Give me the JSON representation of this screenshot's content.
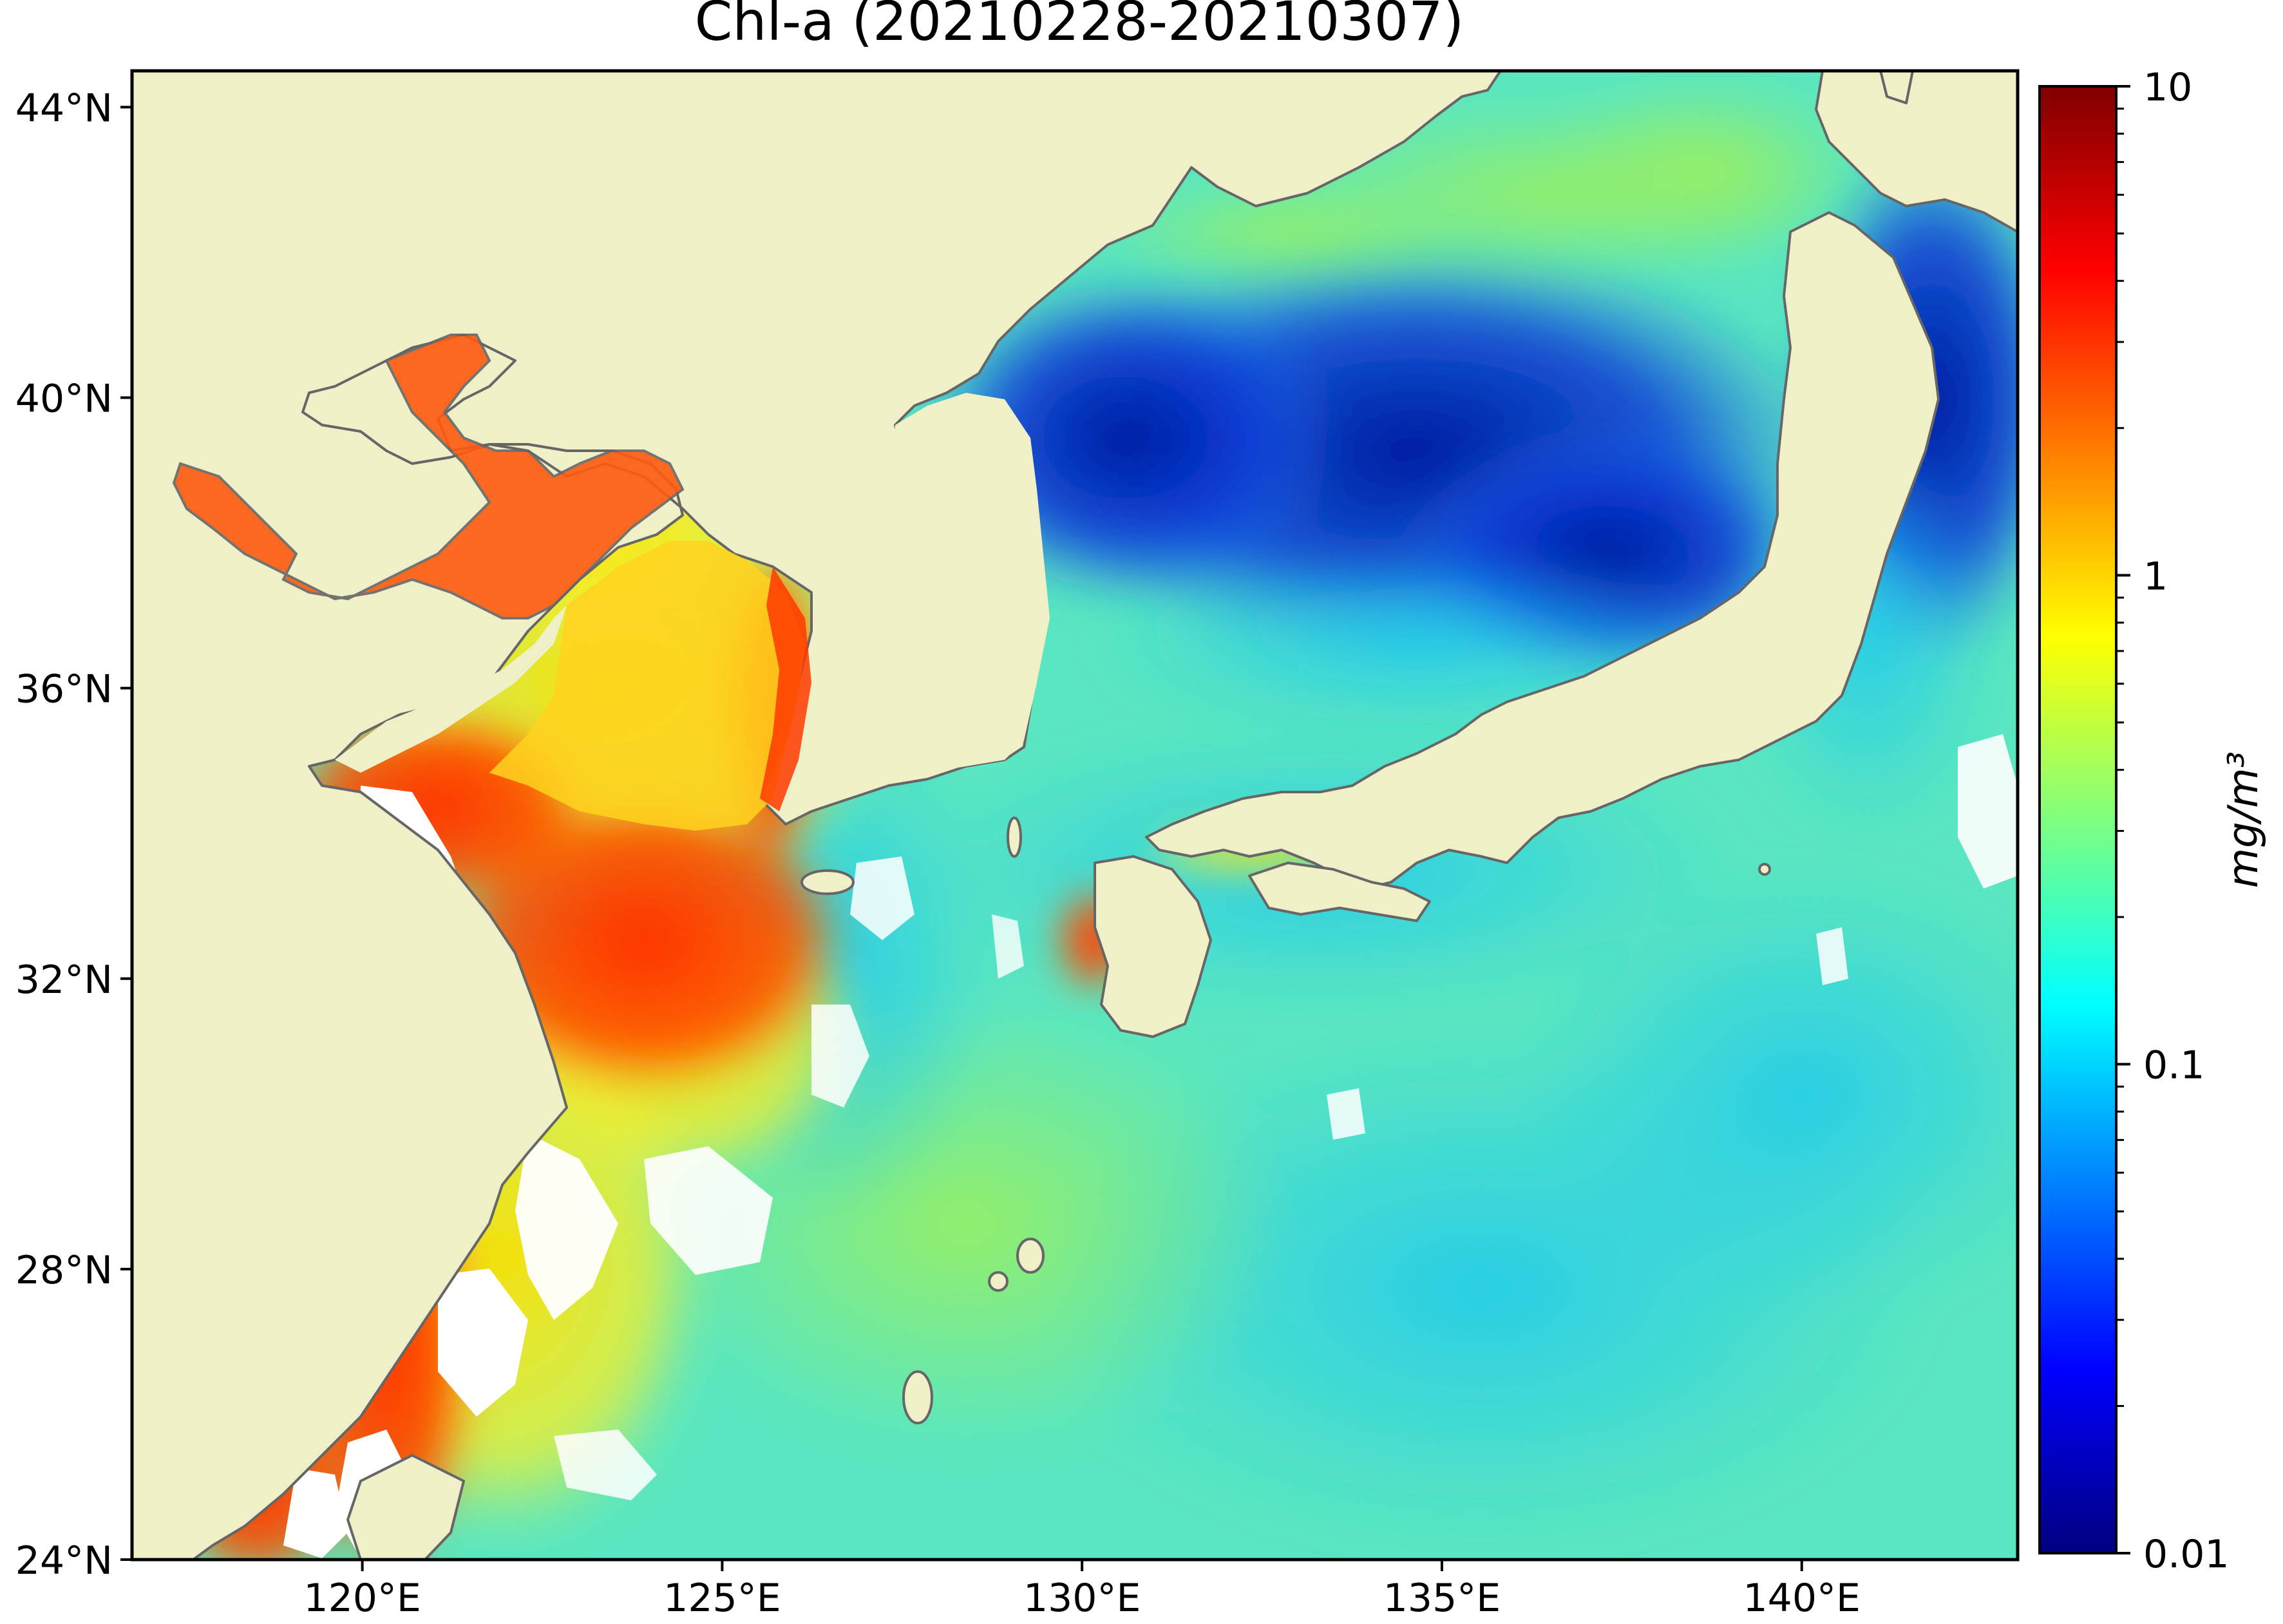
{
  "title": "Chl-a (20210228-20210307)",
  "map": {
    "lon_range": [
      116.8,
      143.0
    ],
    "lat_range": [
      24.0,
      44.5
    ],
    "lon_ticks": [
      {
        "value": 120,
        "label": "120°E"
      },
      {
        "value": 125,
        "label": "125°E"
      },
      {
        "value": 130,
        "label": "130°E"
      },
      {
        "value": 135,
        "label": "135°E"
      },
      {
        "value": 140,
        "label": "140°E"
      }
    ],
    "lat_ticks": [
      {
        "value": 24,
        "label": "24°N"
      },
      {
        "value": 28,
        "label": "28°N"
      },
      {
        "value": 32,
        "label": "32°N"
      },
      {
        "value": 36,
        "label": "36°N"
      },
      {
        "value": 40,
        "label": "40°N"
      },
      {
        "value": 44,
        "label": "44°N"
      }
    ],
    "land_color": "#efefc8",
    "nodata_color": "#ffffff",
    "coastline_color": "#666666"
  },
  "colorbar": {
    "label": "mg/m³",
    "scale": "log",
    "range": [
      0.01,
      10
    ],
    "ticks": [
      {
        "value": 0.01,
        "label": "0.01"
      },
      {
        "value": 0.1,
        "label": "0.1"
      },
      {
        "value": 1,
        "label": "1"
      },
      {
        "value": 10,
        "label": "10"
      }
    ],
    "colormap": "jet",
    "stops": [
      "#00007f",
      "#0000ff",
      "#007fff",
      "#00ffff",
      "#7fff7f",
      "#ffff00",
      "#ff7f00",
      "#ff0000",
      "#7f0000"
    ]
  }
}
